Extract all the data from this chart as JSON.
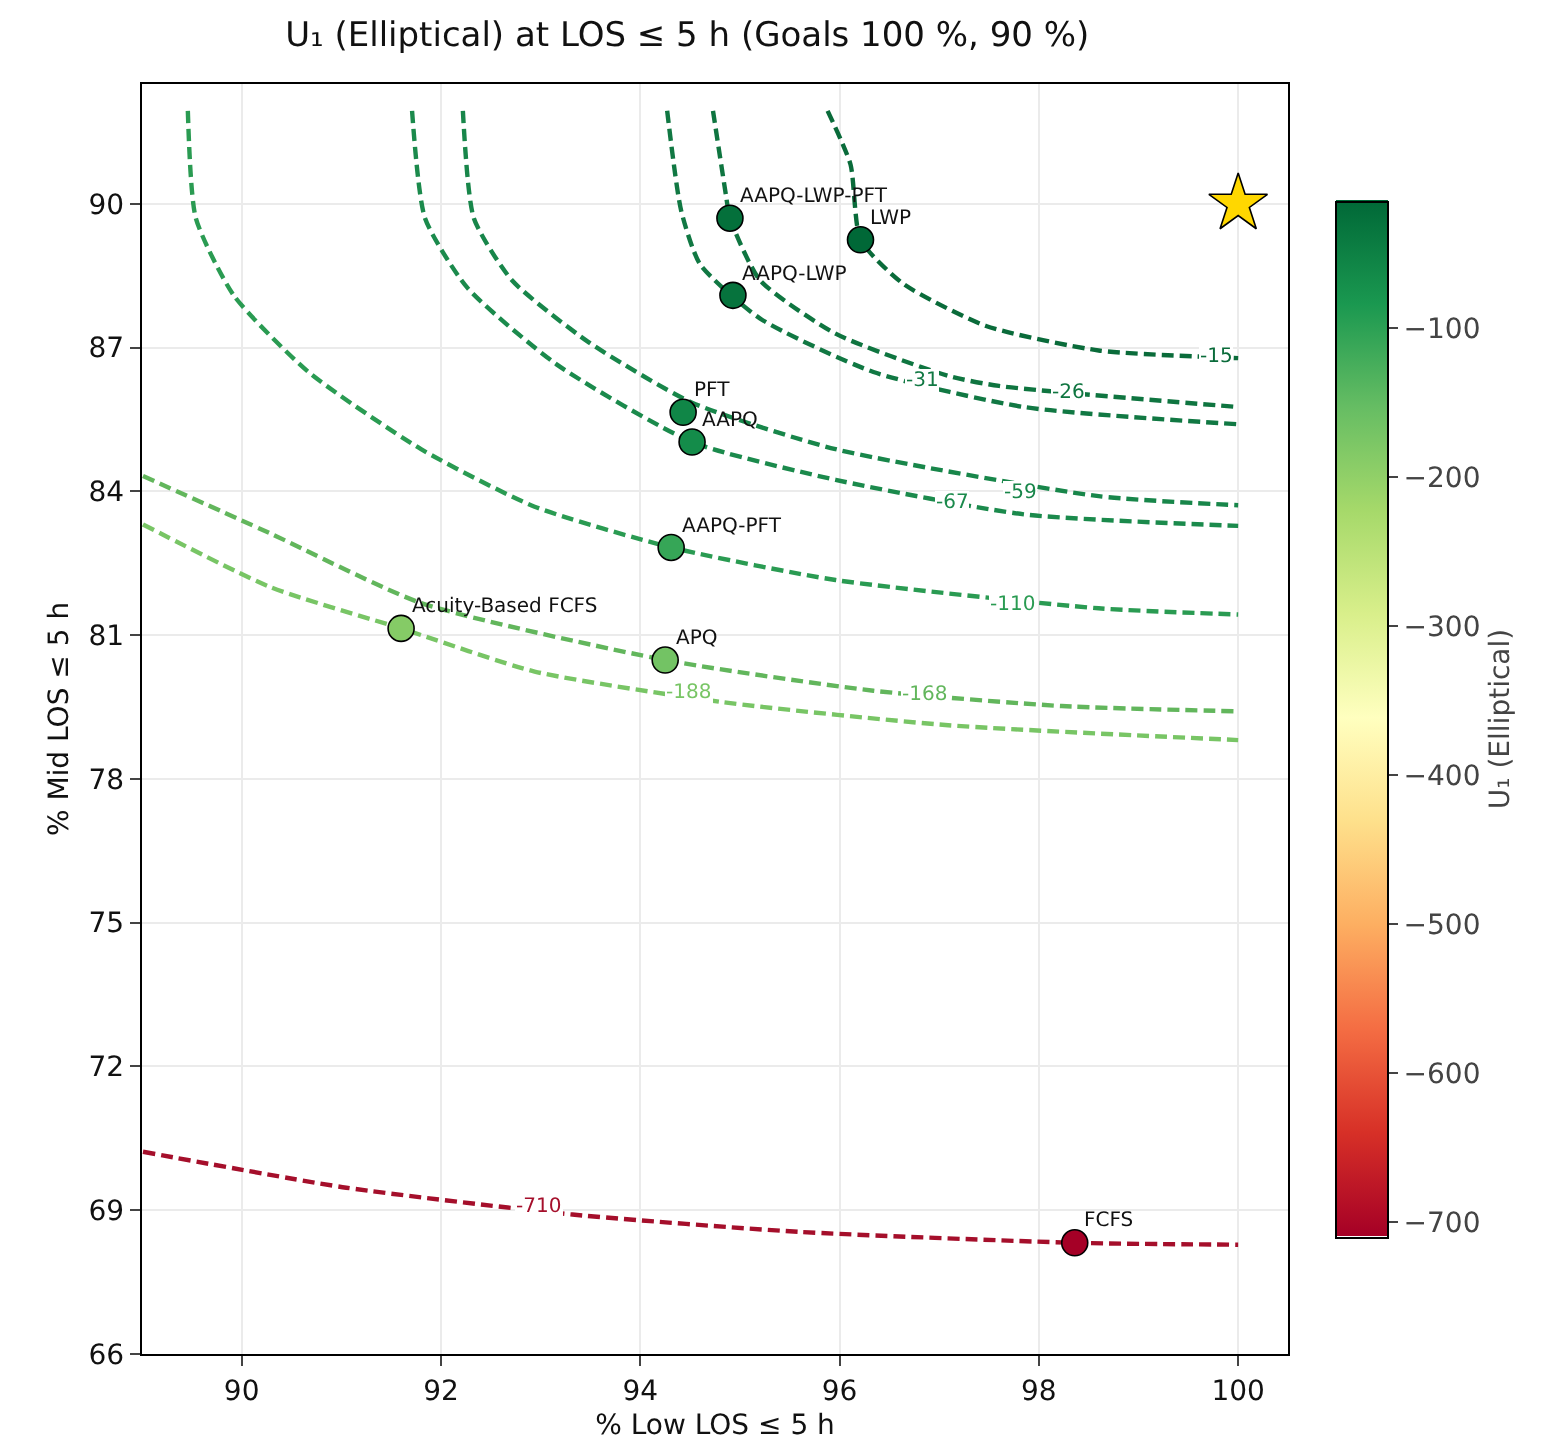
{
  "chart_data": {
    "type": "line",
    "title": "U₁ (Elliptical) at LOS ≤ 5 h (Goals 100 %, 90 %)",
    "xlabel": "% Low LOS ≤ 5 h",
    "ylabel": "% Mid LOS ≤ 5 h",
    "clabel": "U₁ (Elliptical)",
    "xlim": [
      89,
      100.5
    ],
    "ylim": [
      66,
      92.5
    ],
    "xticks": [
      90,
      92,
      94,
      96,
      98,
      100
    ],
    "yticks": [
      66,
      69,
      72,
      75,
      78,
      81,
      84,
      87,
      90
    ],
    "clim": [
      -710,
      -15
    ],
    "cticks": [
      -100,
      -200,
      -300,
      -400,
      -500,
      -600,
      -700
    ],
    "grid": true,
    "line_style": "dashed",
    "marker": "none",
    "series": [
      {
        "color": "#0a6b3a",
        "x": [
          95.88,
          96.11,
          96.21,
          96.64,
          97.47,
          98.6,
          100
        ],
        "values": [
          91.94,
          90.82,
          89.25,
          88.33,
          87.45,
          86.94,
          86.78
        ]
      },
      {
        "color": "#0f7540",
        "x": [
          94.73,
          94.86,
          94.9,
          95.2,
          95.96,
          97.09,
          97.6,
          100
        ],
        "values": [
          91.94,
          90.18,
          89.7,
          88.41,
          87.29,
          86.41,
          86.2,
          85.76
        ]
      },
      {
        "color": "#117843",
        "x": [
          94.27,
          94.41,
          94.6,
          95.2,
          96.34,
          97.85,
          100
        ],
        "values": [
          91.94,
          89.86,
          88.74,
          87.61,
          86.49,
          85.76,
          85.4
        ]
      },
      {
        "color": "#18864a",
        "x": [
          92.22,
          92.33,
          92.71,
          93.47,
          94.52,
          95.96,
          98.6,
          100
        ],
        "values": [
          91.94,
          89.7,
          88.41,
          87.13,
          85.85,
          84.88,
          83.9,
          83.71
        ]
      },
      {
        "color": "#1b8a4c",
        "x": [
          91.71,
          91.84,
          92.26,
          93.16,
          94.52,
          95.96,
          97.85,
          100
        ],
        "values": [
          91.94,
          89.7,
          88.26,
          86.65,
          85.03,
          84.24,
          83.52,
          83.28
        ]
      },
      {
        "color": "#2a9b52",
        "x": [
          89.46,
          89.54,
          89.92,
          90.67,
          91.8,
          92.94,
          94.31,
          95.96,
          98.6,
          100
        ],
        "values": [
          91.94,
          89.7,
          88.09,
          86.49,
          84.88,
          83.68,
          82.83,
          82.15,
          81.56,
          81.43
        ]
      },
      {
        "color": "#62b65c",
        "x": [
          89.01,
          90.29,
          91.8,
          94.25,
          96.34,
          98.23,
          100
        ],
        "values": [
          84.32,
          83.12,
          81.67,
          80.48,
          79.84,
          79.52,
          79.41
        ]
      },
      {
        "color": "#78c565",
        "x": [
          89.01,
          90.29,
          91.6,
          92.94,
          94.83,
          97.09,
          100
        ],
        "values": [
          83.31,
          82.0,
          81.14,
          80.24,
          79.6,
          79.12,
          78.81
        ]
      },
      {
        "color": "#a50f2b",
        "x": [
          89.01,
          91.05,
          93.32,
          95.58,
          98.36,
          100
        ],
        "values": [
          70.22,
          69.47,
          68.91,
          68.55,
          68.32,
          68.28
        ]
      },
      {
        "type": "scatter",
        "marker": "circle",
        "x": [
          94.9,
          96.21,
          94.93,
          94.43,
          94.52,
          94.31,
          91.6,
          94.25,
          98.36
        ],
        "values": [
          89.7,
          89.25,
          88.09,
          85.65,
          85.03,
          82.83,
          81.14,
          80.48,
          68.32
        ],
        "colors": [
          "#04703b",
          "#006837",
          "#06733d",
          "#108647",
          "#148c4a",
          "#36a657",
          "#85cb66",
          "#73c364",
          "#a50026"
        ]
      },
      {
        "type": "scatter",
        "marker": "star",
        "color": "#ffd700",
        "x": [
          100
        ],
        "values": [
          90
        ]
      }
    ],
    "annotations": [
      {
        "text": "AAPQ-LWP-PFT",
        "x": 94.9,
        "y": 89.7
      },
      {
        "text": "LWP",
        "x": 96.21,
        "y": 89.25
      },
      {
        "text": "AAPQ-LWP",
        "x": 94.93,
        "y": 88.09
      },
      {
        "text": "PFT",
        "x": 94.43,
        "y": 85.65
      },
      {
        "text": "AAPQ",
        "x": 94.52,
        "y": 85.03
      },
      {
        "text": "AAPQ-PFT",
        "x": 94.31,
        "y": 82.83
      },
      {
        "text": "Acuity-Based FCFS",
        "x": 91.6,
        "y": 81.14
      },
      {
        "text": "APQ",
        "x": 94.25,
        "y": 80.48
      },
      {
        "text": "FCFS",
        "x": 98.36,
        "y": 68.32
      },
      {
        "text": "-15",
        "x": 99.78,
        "y": 86.8
      },
      {
        "text": "-26",
        "x": 98.3,
        "y": 86.06
      },
      {
        "text": "-31",
        "x": 96.83,
        "y": 86.3
      },
      {
        "text": "-59",
        "x": 97.81,
        "y": 83.97
      },
      {
        "text": "-67",
        "x": 97.13,
        "y": 83.76
      },
      {
        "text": "-110",
        "x": 97.75,
        "y": 81.64
      },
      {
        "text": "-168",
        "x": 96.85,
        "y": 79.76
      },
      {
        "text": "-188",
        "x": 94.49,
        "y": 79.81
      },
      {
        "text": "-710",
        "x": 92.98,
        "y": 69.07
      }
    ]
  }
}
